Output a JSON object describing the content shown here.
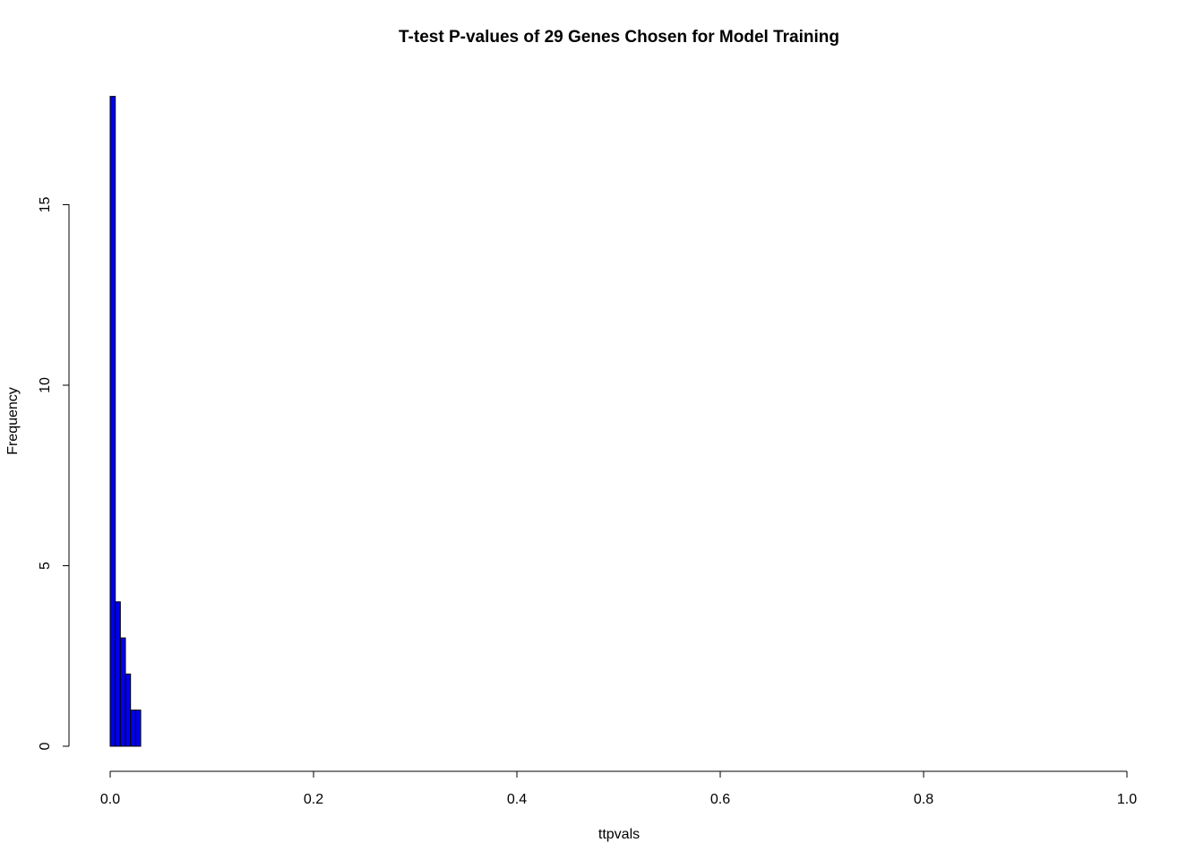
{
  "chart_data": {
    "type": "bar",
    "title": "T-test P-values of 29 Genes Chosen for Model Training",
    "xlabel": "ttpvals",
    "ylabel": "Frequency",
    "xlim": [
      0,
      1
    ],
    "ylim": [
      0,
      18
    ],
    "x_ticks": [
      0.0,
      0.2,
      0.4,
      0.6,
      0.8,
      1.0
    ],
    "x_tick_labels": [
      "0.0",
      "0.2",
      "0.4",
      "0.6",
      "0.8",
      "1.0"
    ],
    "y_ticks": [
      0,
      5,
      10,
      15
    ],
    "y_tick_labels": [
      "0",
      "5",
      "10",
      "15"
    ],
    "bins": [
      {
        "x0": 0.0,
        "x1": 0.005,
        "count": 18
      },
      {
        "x0": 0.005,
        "x1": 0.01,
        "count": 4
      },
      {
        "x0": 0.01,
        "x1": 0.015,
        "count": 3
      },
      {
        "x0": 0.015,
        "x1": 0.02,
        "count": 2
      },
      {
        "x0": 0.02,
        "x1": 0.025,
        "count": 1
      },
      {
        "x0": 0.025,
        "x1": 0.03,
        "count": 1
      }
    ],
    "bar_color": "#0000ee",
    "grid": false,
    "legend": "none"
  }
}
